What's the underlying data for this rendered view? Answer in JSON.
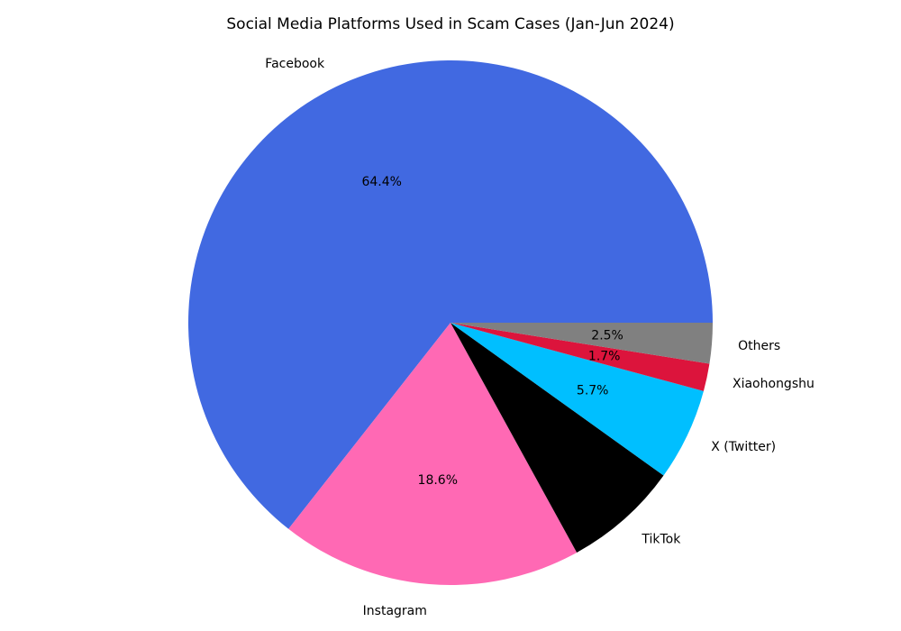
{
  "title": "Social Media Platforms Used in Scam Cases (Jan-Jun 2024)",
  "chart_data": {
    "type": "pie",
    "title": "Social Media Platforms Used in Scam Cases (Jan-Jun 2024)",
    "categories": [
      "Facebook",
      "Instagram",
      "TikTok",
      "X (Twitter)",
      "Xiaohongshu",
      "Others"
    ],
    "values": [
      64.4,
      18.6,
      7.1,
      5.7,
      1.7,
      2.5
    ],
    "pct_labels": [
      "64.4%",
      "18.6%",
      "7.1%",
      "5.7%",
      "1.7%",
      "2.5%"
    ],
    "colors": [
      "#4169E1",
      "#FF69B4",
      "#000000",
      "#00BFFF",
      "#DC143C",
      "#808080"
    ],
    "start_angle": 0,
    "direction": "counterclockwise",
    "label_distance": 1.1,
    "pct_distance": 0.6,
    "background_color": "#ffffff",
    "text_color": "#000000",
    "legend": "none",
    "grid": false
  }
}
